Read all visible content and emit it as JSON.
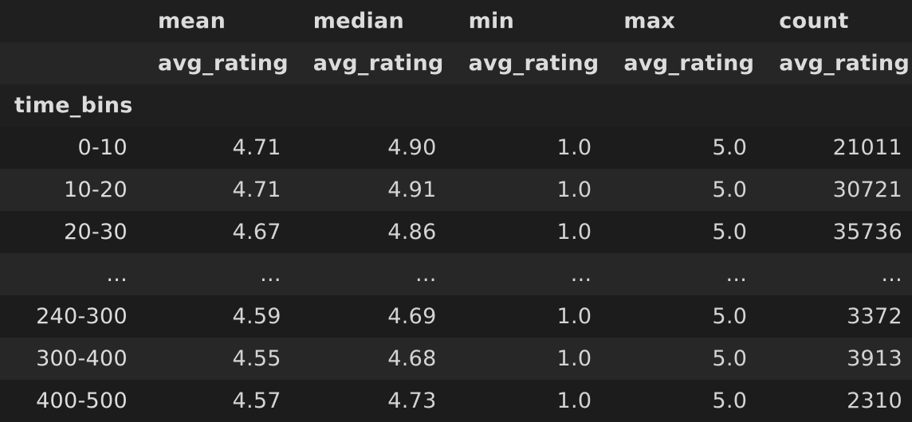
{
  "columns": {
    "level0": [
      "mean",
      "median",
      "min",
      "max",
      "count"
    ],
    "level1": [
      "avg_rating",
      "avg_rating",
      "avg_rating",
      "avg_rating",
      "avg_rating"
    ]
  },
  "index_name": "time_bins",
  "rows": [
    {
      "label": "0-10",
      "values": [
        "4.71",
        "4.90",
        "1.0",
        "5.0",
        "21011"
      ]
    },
    {
      "label": "10-20",
      "values": [
        "4.71",
        "4.91",
        "1.0",
        "5.0",
        "30721"
      ]
    },
    {
      "label": "20-30",
      "values": [
        "4.67",
        "4.86",
        "1.0",
        "5.0",
        "35736"
      ]
    },
    {
      "label": "...",
      "values": [
        "...",
        "...",
        "...",
        "...",
        "..."
      ]
    },
    {
      "label": "240-300",
      "values": [
        "4.59",
        "4.69",
        "1.0",
        "5.0",
        "3372"
      ]
    },
    {
      "label": "300-400",
      "values": [
        "4.55",
        "4.68",
        "1.0",
        "5.0",
        "3913"
      ]
    },
    {
      "label": "400-500",
      "values": [
        "4.57",
        "4.73",
        "1.0",
        "5.0",
        "2310"
      ]
    }
  ]
}
